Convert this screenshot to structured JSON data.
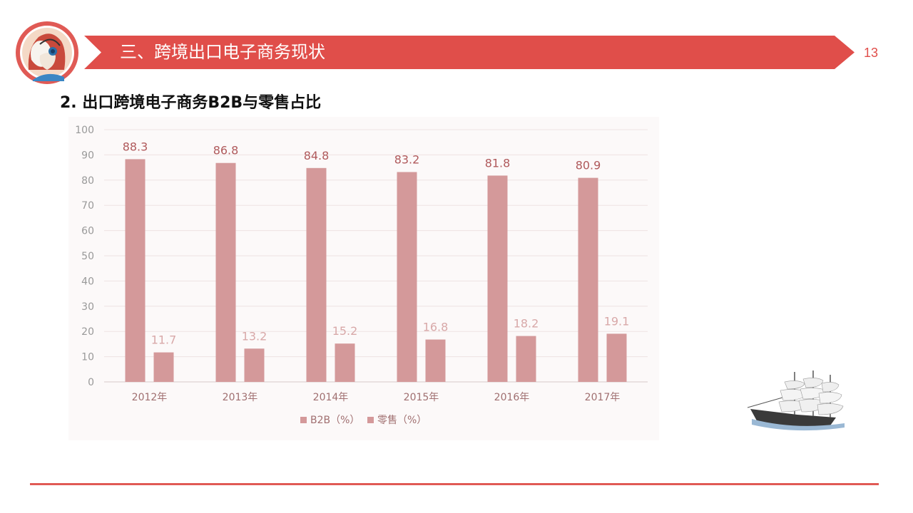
{
  "header": {
    "title": "三、跨境出口电子商务现状",
    "page_number": "13",
    "accent_color": "#e04e4a"
  },
  "section": {
    "subtitle": "2. 出口跨境电子商务B2B与零售占比"
  },
  "chart_data": {
    "type": "bar",
    "categories": [
      "2012年",
      "2013年",
      "2014年",
      "2015年",
      "2016年",
      "2017年"
    ],
    "series": [
      {
        "name": "B2B（%）",
        "values": [
          88.3,
          86.8,
          84.8,
          83.2,
          81.8,
          80.9
        ],
        "color": "#d4999a"
      },
      {
        "name": "零售（%）",
        "values": [
          11.7,
          13.2,
          15.2,
          16.8,
          18.2,
          19.1
        ],
        "color": "#d4999a"
      }
    ],
    "value_labels": [
      [
        "88.3",
        "86.8",
        "84.8",
        "83.2",
        "81.8",
        "80.9"
      ],
      [
        "11.7",
        "13.2",
        "15.2",
        "16.8",
        "18.2",
        "19.1"
      ]
    ],
    "yticks": [
      "0",
      "10",
      "20",
      "30",
      "40",
      "50",
      "60",
      "70",
      "80",
      "90",
      "100"
    ],
    "ylim": [
      0,
      100
    ],
    "grid": true,
    "legend_position": "bottom-center"
  },
  "decorations": {
    "logo_icon": "customer-service-headset-icon",
    "ship_icon": "sailing-ship-icon"
  }
}
